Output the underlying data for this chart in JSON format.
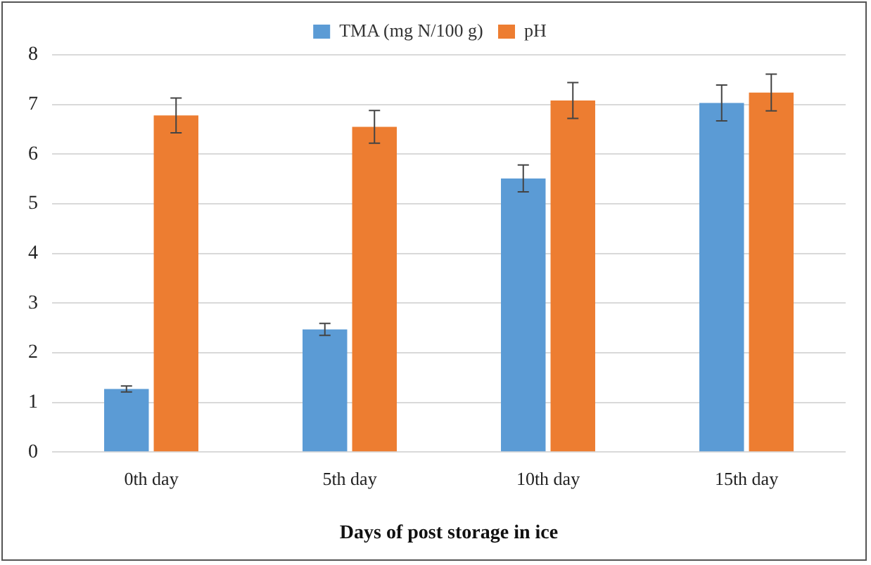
{
  "chart_data": {
    "type": "bar",
    "xlabel": "Days of post storage in ice",
    "categories": [
      "0th day",
      "5th day",
      "10th day",
      "15th day"
    ],
    "series": [
      {
        "name": "TMA (mg N/100 g)",
        "color": "#5b9bd5",
        "values": [
          1.27,
          2.47,
          5.51,
          7.03
        ],
        "errors": [
          0.06,
          0.12,
          0.27,
          0.36
        ]
      },
      {
        "name": "pH",
        "color": "#ed7d31",
        "values": [
          6.78,
          6.55,
          7.08,
          7.24
        ],
        "errors": [
          0.35,
          0.33,
          0.36,
          0.37
        ]
      }
    ],
    "ylim": [
      0,
      8
    ],
    "yticks": [
      0,
      1,
      2,
      3,
      4,
      5,
      6,
      7,
      8
    ],
    "grid": "y",
    "legend": "top"
  }
}
